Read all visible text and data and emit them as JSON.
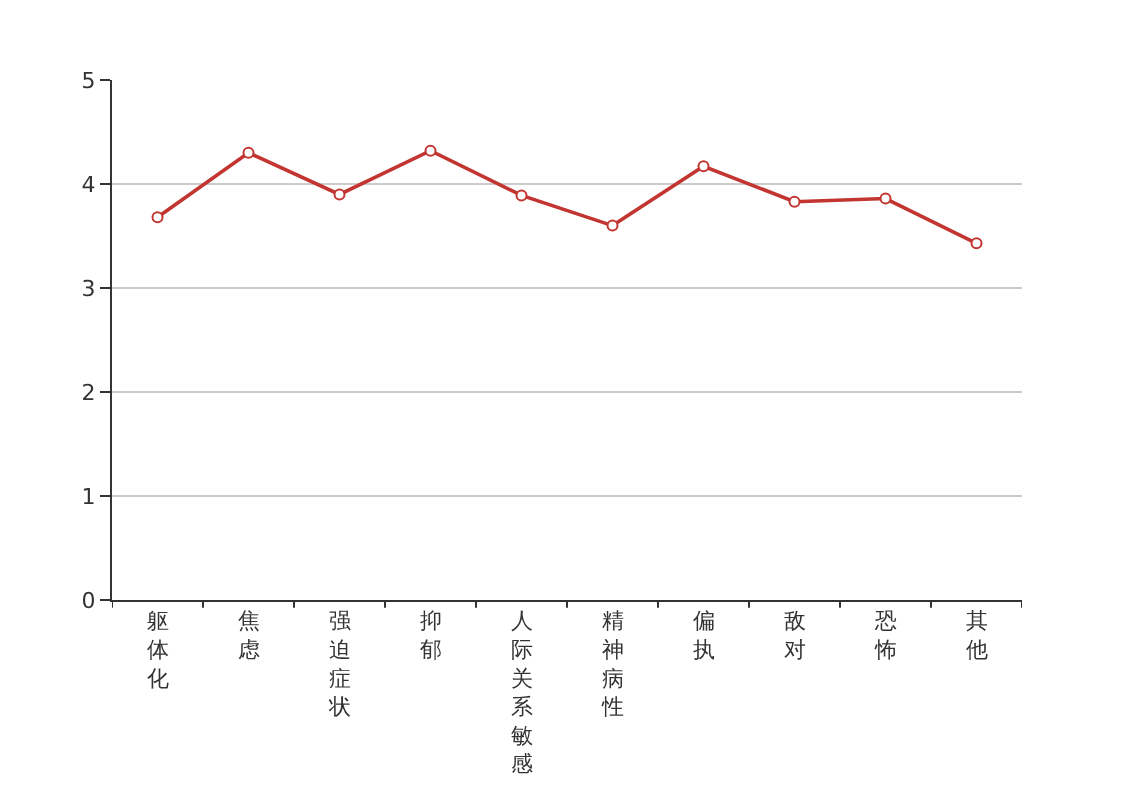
{
  "chart_data": {
    "type": "line",
    "categories": [
      "躯体化",
      "焦虑",
      "强迫症状",
      "抑郁",
      "人际关系敏感",
      "精神病性",
      "偏执",
      "敌对",
      "恐怖",
      "其他"
    ],
    "series": [
      {
        "color": "#c23531",
        "values": [
          3.68,
          4.3,
          3.9,
          4.32,
          3.89,
          3.6,
          4.17,
          3.83,
          3.86,
          3.43
        ]
      }
    ],
    "ylim": [
      0,
      5
    ],
    "yticks": [
      0,
      1,
      2,
      3,
      4,
      5
    ],
    "grid": "y",
    "marker": "circle",
    "line_style": "solid"
  }
}
